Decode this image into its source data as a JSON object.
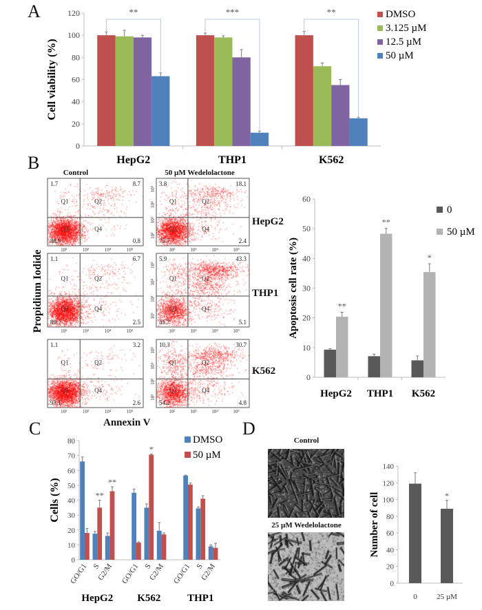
{
  "panels": {
    "a": "A",
    "b": "B",
    "c": "C",
    "d": "D"
  },
  "chart_data": [
    {
      "id": "viability",
      "type": "bar",
      "categories": [
        "HepG2",
        "THP1",
        "K562"
      ],
      "series": [
        {
          "name": "DMSO",
          "color": "#c0504d",
          "values": [
            100,
            100,
            100
          ],
          "errors": [
            3,
            2,
            3.5
          ]
        },
        {
          "name": "3.125 µM",
          "color": "#9bbb59",
          "values": [
            99,
            98,
            72
          ],
          "errors": [
            5.5,
            1.5,
            3
          ]
        },
        {
          "name": "12.5 µM",
          "color": "#8064a2",
          "values": [
            98,
            80,
            55
          ],
          "errors": [
            2,
            7,
            5
          ]
        },
        {
          "name": "50 µM",
          "color": "#4f81bd",
          "values": [
            63,
            12,
            25
          ],
          "errors": [
            3,
            1.5,
            1
          ]
        }
      ],
      "significance": [
        "**",
        "***",
        "**"
      ],
      "xlabel": "",
      "ylabel": "Cell viability (%)",
      "ylim": [
        0,
        120
      ],
      "yticks": [
        "0",
        "20",
        "40",
        "60",
        "80",
        "100",
        "120"
      ],
      "legend": "right",
      "grid": false
    },
    {
      "id": "apoptosis",
      "type": "bar",
      "categories": [
        "HepG2",
        "THP1",
        "K562"
      ],
      "series": [
        {
          "name": "0",
          "color": "#595959",
          "values": [
            9.3,
            7.1,
            5.7
          ],
          "errors": [
            0.3,
            0.7,
            1.5
          ]
        },
        {
          "name": "50 µM",
          "color": "#b3b3b3",
          "values": [
            20.4,
            48.3,
            35.4
          ],
          "errors": [
            1.5,
            1.8,
            2.8
          ]
        }
      ],
      "significance": [
        "**",
        "**",
        "*"
      ],
      "xlabel": "",
      "ylabel": "Apoptosis cell rate (%)",
      "ylim": [
        0,
        60
      ],
      "yticks": [
        "0",
        "10",
        "20",
        "30",
        "40",
        "50",
        "60"
      ],
      "legend": "top-right",
      "grid": false
    },
    {
      "id": "cell-cycle",
      "type": "bar",
      "groups": [
        "HepG2",
        "K562",
        "THP1"
      ],
      "categories": [
        "GO/G1",
        "S",
        "G2/M"
      ],
      "series": [
        {
          "name": "DMSO",
          "color": "#4f81bd",
          "values": [
            [
              66,
              17.5,
              16
            ],
            [
              45,
              35,
              19.5
            ],
            [
              56.5,
              34.5,
              9
            ]
          ],
          "errors": [
            [
              3,
              1.5,
              2
            ],
            [
              2.5,
              2.5,
              5.5
            ],
            [
              0.3,
              1,
              1
            ]
          ]
        },
        {
          "name": "50 µM",
          "color": "#c0504d",
          "values": [
            [
              18,
              35,
              46
            ],
            [
              11.5,
              70.5,
              17
            ],
            [
              50.5,
              41,
              8
            ]
          ],
          "errors": [
            [
              3,
              5,
              3
            ],
            [
              0.5,
              0.5,
              1
            ],
            [
              1,
              2,
              3
            ]
          ]
        }
      ],
      "significance": [
        [
          "",
          "**",
          "**"
        ],
        [
          "",
          "*",
          ""
        ],
        [
          "",
          "",
          ""
        ]
      ],
      "xlabel": "",
      "ylabel": "Cells (%)",
      "ylim": [
        0,
        80
      ],
      "yticks": [
        "0",
        "10",
        "20",
        "30",
        "40",
        "50",
        "60",
        "70",
        "80"
      ],
      "legend": "top-right",
      "grid": false
    },
    {
      "id": "cell-number",
      "type": "bar",
      "categories": [
        "0",
        "25 µM"
      ],
      "values": [
        119,
        89
      ],
      "errors": [
        13,
        10
      ],
      "color": "#595959",
      "significance": [
        "",
        "*"
      ],
      "xlabel": "",
      "ylabel": "Number of cell",
      "ylim": [
        0,
        140
      ],
      "yticks": [
        "0",
        "20",
        "40",
        "60",
        "80",
        "100",
        "120",
        "140"
      ],
      "grid": false
    }
  ],
  "flow_cytometry": {
    "column_titles": [
      "Control",
      "50 µM Wedelolactone"
    ],
    "row_labels": [
      "HepG2",
      "THP1",
      "K562"
    ],
    "xlabel": "Annexin V",
    "ylabel": "Propidium Iodide",
    "axis_ticks": [
      "10²",
      "10³",
      "10⁴",
      "10⁵"
    ],
    "quadrant_names": [
      "Q1",
      "Q2",
      "Q3",
      "Q4"
    ],
    "dot_color": "#ff0000",
    "plots": [
      {
        "cell": "HepG2",
        "condition": "Control",
        "q1": "1.7",
        "q2": "8.7",
        "q3": "88.9",
        "q4": "0.8"
      },
      {
        "cell": "HepG2",
        "condition": "50 µM Wedelolactone",
        "q1": "3.8",
        "q2": "18.1",
        "q3": "75.7",
        "q4": "2.4"
      },
      {
        "cell": "THP1",
        "condition": "Control",
        "q1": "1.1",
        "q2": "6.7",
        "q3": "89.7",
        "q4": "2.5"
      },
      {
        "cell": "THP1",
        "condition": "50 µM Wedelolactone",
        "q1": "5.9",
        "q2": "43.3",
        "q3": "45.7",
        "q4": "5.1"
      },
      {
        "cell": "K562",
        "condition": "Control",
        "q1": "1.1",
        "q2": "3.2",
        "q3": "93.1",
        "q4": "2.6"
      },
      {
        "cell": "K562",
        "condition": "50 µM Wedelolactone",
        "q1": "10.3",
        "q2": "30.7",
        "q3": "54.2",
        "q4": "4.8"
      }
    ]
  },
  "microscopy": {
    "titles": [
      "Control",
      "25 µM Wedelolactone"
    ]
  }
}
